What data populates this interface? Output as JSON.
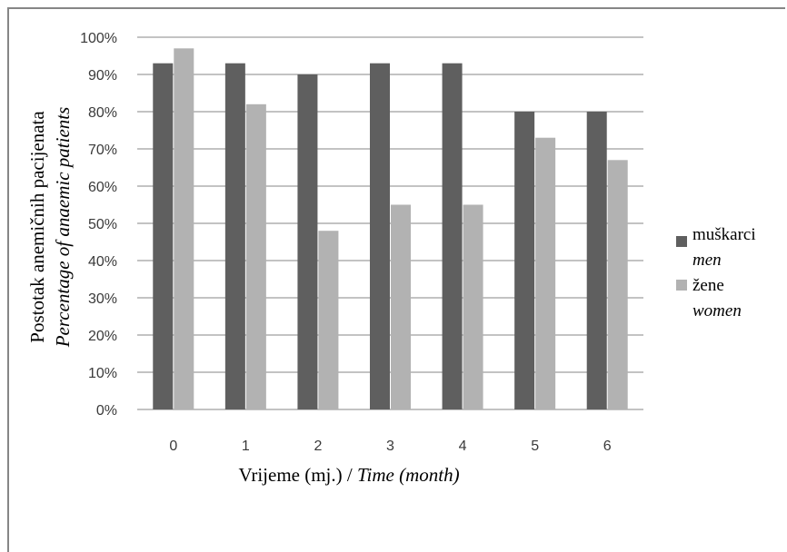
{
  "chart_data": {
    "type": "bar",
    "title": "",
    "categories": [
      "0",
      "1",
      "2",
      "3",
      "4",
      "5",
      "6"
    ],
    "series": [
      {
        "name": "muškarci",
        "name_en": "men",
        "color": "#5f5f5f",
        "values": [
          93,
          93,
          90,
          93,
          93,
          80,
          80
        ]
      },
      {
        "name": "žene",
        "name_en": "women",
        "color": "#b2b2b2",
        "values": [
          97,
          82,
          48,
          55,
          55,
          73,
          67
        ]
      }
    ],
    "ylim": [
      0,
      100
    ],
    "yticks": [
      "0%",
      "10%",
      "20%",
      "30%",
      "40%",
      "50%",
      "60%",
      "70%",
      "80%",
      "90%",
      "100%"
    ],
    "xlabel": "Vrijeme (mj.) / ",
    "xlabel_en": "Time (month)",
    "ylabel": "Postotak anemičnih pacijenata",
    "ylabel_en": "Percentage of anaemic patients",
    "grid": true,
    "legend_position": "right"
  }
}
